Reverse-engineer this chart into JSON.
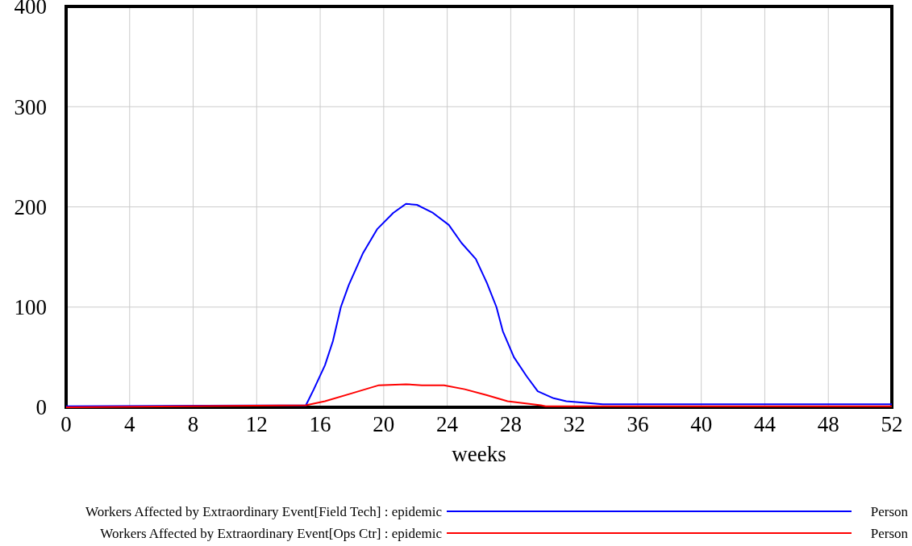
{
  "chart_data": {
    "type": "line",
    "xlabel": "weeks",
    "xlim": [
      0,
      52
    ],
    "xticks": [
      0,
      4,
      8,
      12,
      16,
      20,
      24,
      28,
      32,
      36,
      40,
      44,
      48,
      52
    ],
    "ylim": [
      0,
      400
    ],
    "yticks": [
      0,
      100,
      200,
      300,
      400
    ],
    "grid": true,
    "legend": "bottom",
    "line_style": "solid",
    "annotations": [
      "Person",
      "Person"
    ],
    "series": [
      {
        "name": "Workers Affected by Extraordinary Event[Field Tech] : epidemic",
        "color": "#0000ff",
        "x": [
          0,
          15.1,
          15.6,
          16.3,
          16.8,
          17.3,
          17.8,
          18.7,
          19.6,
          20.6,
          21.4,
          22.1,
          23.1,
          24.1,
          24.9,
          25.8,
          26.5,
          27.1,
          27.5,
          28.2,
          29,
          29.7,
          30.7,
          31.5,
          33.8,
          52
        ],
        "values": [
          1,
          2,
          18,
          42,
          66,
          100,
          122,
          154,
          178,
          194,
          203,
          202,
          194,
          182,
          164,
          148,
          124,
          100,
          76,
          50,
          31,
          16,
          9,
          6,
          3,
          3
        ]
      },
      {
        "name": "Workers Affected by Extraordinary Event[Ops Ctr] : epidemic",
        "color": "#ff0000",
        "x": [
          0,
          15.1,
          16.3,
          18,
          19.7,
          21.4,
          22.4,
          23.8,
          25.1,
          26.5,
          27.8,
          29.9,
          30.2,
          52
        ],
        "values": [
          0,
          2,
          6,
          14,
          22,
          23,
          22,
          22,
          18,
          12,
          6,
          2,
          1,
          1
        ]
      }
    ]
  }
}
